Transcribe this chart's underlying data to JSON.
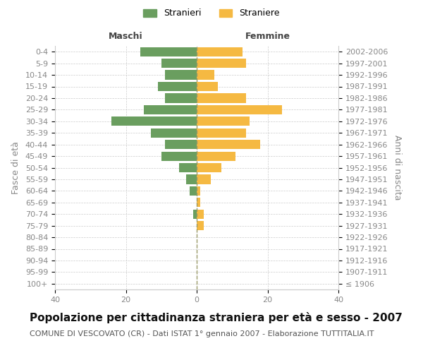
{
  "age_groups": [
    "100+",
    "95-99",
    "90-94",
    "85-89",
    "80-84",
    "75-79",
    "70-74",
    "65-69",
    "60-64",
    "55-59",
    "50-54",
    "45-49",
    "40-44",
    "35-39",
    "30-34",
    "25-29",
    "20-24",
    "15-19",
    "10-14",
    "5-9",
    "0-4"
  ],
  "birth_years": [
    "≤ 1906",
    "1907-1911",
    "1912-1916",
    "1917-1921",
    "1922-1926",
    "1927-1931",
    "1932-1936",
    "1937-1941",
    "1942-1946",
    "1947-1951",
    "1952-1956",
    "1957-1961",
    "1962-1966",
    "1967-1971",
    "1972-1976",
    "1977-1981",
    "1982-1986",
    "1987-1991",
    "1992-1996",
    "1997-2001",
    "2002-2006"
  ],
  "maschi": [
    0,
    0,
    0,
    0,
    0,
    0,
    1,
    0,
    2,
    3,
    5,
    10,
    9,
    13,
    24,
    15,
    9,
    11,
    9,
    10,
    16
  ],
  "femmine": [
    0,
    0,
    0,
    0,
    0,
    2,
    2,
    1,
    1,
    4,
    7,
    11,
    18,
    14,
    15,
    24,
    14,
    6,
    5,
    14,
    13
  ],
  "maschi_color": "#6a9e5f",
  "femmine_color": "#f5b942",
  "xlim": 40,
  "title": "Popolazione per cittadinanza straniera per età e sesso - 2007",
  "subtitle": "COMUNE DI VESCOVATO (CR) - Dati ISTAT 1° gennaio 2007 - Elaborazione TUTTITALIA.IT",
  "xlabel_left": "Maschi",
  "xlabel_right": "Femmine",
  "ylabel_left": "Fasce di età",
  "ylabel_right": "Anni di nascita",
  "legend_maschi": "Stranieri",
  "legend_femmine": "Straniere",
  "background_color": "#ffffff",
  "grid_color": "#cccccc",
  "bar_height": 0.8,
  "center_line_color": "#999966",
  "title_fontsize": 11,
  "subtitle_fontsize": 8,
  "label_fontsize": 9,
  "tick_fontsize": 8,
  "axis_label_color": "#888888"
}
